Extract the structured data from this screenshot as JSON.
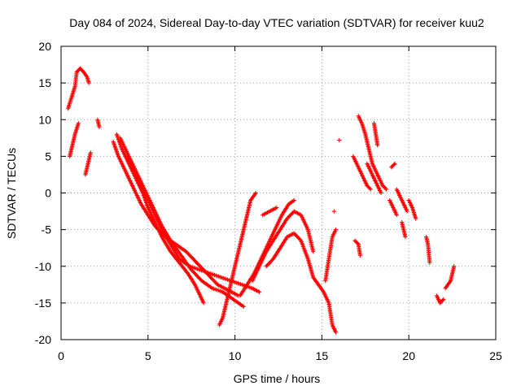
{
  "chart_data": {
    "type": "scatter",
    "title": "Day 084 of 2024, Sidereal Day-to-day VTEC variation (SDTVAR) for receiver kuu2",
    "xlabel": "GPS time / hours",
    "ylabel": "SDTVAR / TECUs",
    "xlim": [
      0,
      25
    ],
    "ylim": [
      -20,
      20
    ],
    "xticks": [
      0,
      5,
      10,
      15,
      20,
      25
    ],
    "yticks": [
      -20,
      -15,
      -10,
      -5,
      0,
      5,
      10,
      15,
      20
    ],
    "grid": true,
    "marker": "+",
    "series": [
      {
        "name": "SDTVAR",
        "color": "#ff0000",
        "tracks": [
          [
            [
              0.4,
              11.5
            ],
            [
              0.6,
              13
            ],
            [
              0.8,
              14.5
            ],
            [
              0.9,
              16.5
            ],
            [
              1.1,
              17
            ],
            [
              1.3,
              16.5
            ],
            [
              1.5,
              15.8
            ],
            [
              1.6,
              15
            ]
          ],
          [
            [
              0.5,
              5
            ],
            [
              0.6,
              6
            ],
            [
              0.8,
              8
            ],
            [
              1.0,
              9.5
            ]
          ],
          [
            [
              1.4,
              2.5
            ],
            [
              1.5,
              3.5
            ],
            [
              1.6,
              4.5
            ],
            [
              1.7,
              5.5
            ]
          ],
          [
            [
              2.1,
              10
            ],
            [
              2.2,
              9
            ]
          ],
          [
            [
              3.0,
              7
            ],
            [
              3.3,
              5
            ],
            [
              3.7,
              3
            ],
            [
              4.0,
              1.5
            ],
            [
              4.3,
              0
            ],
            [
              4.6,
              -1.5
            ],
            [
              5.0,
              -3
            ],
            [
              5.4,
              -4.5
            ],
            [
              6.0,
              -6
            ],
            [
              6.6,
              -7
            ],
            [
              7.2,
              -8
            ],
            [
              7.8,
              -9.5
            ],
            [
              8.2,
              -10.5
            ],
            [
              8.6,
              -11.5
            ],
            [
              9.0,
              -12.5
            ],
            [
              9.4,
              -13
            ],
            [
              9.8,
              -13.5
            ],
            [
              10.2,
              -14
            ]
          ],
          [
            [
              3.2,
              8
            ],
            [
              3.5,
              6
            ],
            [
              3.9,
              4
            ],
            [
              4.3,
              2
            ],
            [
              4.7,
              0
            ],
            [
              5.0,
              -2
            ],
            [
              5.4,
              -4
            ],
            [
              5.8,
              -6
            ],
            [
              6.3,
              -8
            ],
            [
              6.8,
              -9.5
            ],
            [
              7.3,
              -11
            ],
            [
              7.7,
              -12.5
            ],
            [
              8.0,
              -14
            ],
            [
              8.2,
              -15
            ]
          ],
          [
            [
              3.4,
              7.5
            ],
            [
              3.8,
              5.5
            ],
            [
              4.2,
              3.5
            ],
            [
              4.6,
              1.5
            ],
            [
              5.0,
              -0.5
            ],
            [
              5.4,
              -2.5
            ],
            [
              5.8,
              -4.5
            ],
            [
              6.3,
              -6.5
            ],
            [
              6.9,
              -8.5
            ],
            [
              7.5,
              -10.5
            ],
            [
              8.1,
              -12
            ],
            [
              8.7,
              -13
            ],
            [
              9.3,
              -13.5
            ],
            [
              9.9,
              -14.5
            ],
            [
              10.5,
              -15.5
            ]
          ],
          [
            [
              3.8,
              5
            ],
            [
              4.2,
              3
            ],
            [
              4.6,
              1
            ],
            [
              5.0,
              -1
            ],
            [
              5.4,
              -3
            ],
            [
              5.8,
              -5
            ],
            [
              6.3,
              -7
            ],
            [
              6.8,
              -9
            ],
            [
              7.4,
              -10
            ],
            [
              8.0,
              -10.5
            ],
            [
              8.6,
              -11
            ],
            [
              9.2,
              -11.5
            ],
            [
              9.8,
              -12
            ],
            [
              10.4,
              -12.5
            ],
            [
              11.0,
              -13
            ],
            [
              11.4,
              -13.5
            ]
          ],
          [
            [
              9.1,
              -18
            ],
            [
              9.3,
              -17
            ],
            [
              9.5,
              -15
            ],
            [
              9.7,
              -13
            ],
            [
              9.9,
              -11
            ],
            [
              10.1,
              -9
            ],
            [
              10.3,
              -7
            ],
            [
              10.5,
              -5
            ],
            [
              10.7,
              -3
            ],
            [
              10.9,
              -1
            ],
            [
              11.2,
              0
            ]
          ],
          [
            [
              10.3,
              -14
            ],
            [
              10.7,
              -12.5
            ],
            [
              11.1,
              -11
            ],
            [
              11.5,
              -9
            ],
            [
              11.9,
              -7
            ],
            [
              12.3,
              -5
            ],
            [
              12.7,
              -3
            ],
            [
              13.1,
              -1.5
            ],
            [
              13.4,
              -1
            ]
          ],
          [
            [
              11.0,
              -12
            ],
            [
              11.4,
              -10
            ],
            [
              11.8,
              -8
            ],
            [
              12.2,
              -6.5
            ],
            [
              12.6,
              -5
            ],
            [
              13.0,
              -3.5
            ],
            [
              13.4,
              -2.5
            ],
            [
              13.8,
              -3
            ],
            [
              14.2,
              -5
            ],
            [
              14.5,
              -8
            ]
          ],
          [
            [
              11.6,
              -3
            ],
            [
              12.0,
              -2.5
            ],
            [
              12.4,
              -2
            ]
          ],
          [
            [
              11.8,
              -10
            ],
            [
              12.2,
              -9
            ],
            [
              12.6,
              -7.5
            ],
            [
              13.0,
              -6
            ],
            [
              13.4,
              -5.5
            ],
            [
              13.8,
              -6.5
            ],
            [
              14.2,
              -9
            ],
            [
              14.5,
              -11.5
            ],
            [
              14.8,
              -12.5
            ],
            [
              15.1,
              -13.5
            ],
            [
              15.4,
              -15
            ],
            [
              15.6,
              -18
            ],
            [
              15.8,
              -19
            ]
          ],
          [
            [
              15.2,
              -12
            ],
            [
              15.4,
              -9
            ],
            [
              15.6,
              -6
            ],
            [
              15.8,
              -5
            ]
          ],
          [
            [
              15.7,
              -2.5
            ]
          ],
          [
            [
              16.0,
              7.2
            ]
          ],
          [
            [
              16.9,
              -6.5
            ],
            [
              17.1,
              -7
            ],
            [
              17.2,
              -8.5
            ]
          ],
          [
            [
              16.8,
              5
            ],
            [
              17.0,
              4
            ],
            [
              17.2,
              3
            ],
            [
              17.4,
              2
            ],
            [
              17.6,
              1
            ],
            [
              17.8,
              0.5
            ]
          ],
          [
            [
              17.1,
              10.5
            ],
            [
              17.3,
              9.5
            ],
            [
              17.5,
              8
            ],
            [
              17.7,
              6
            ],
            [
              17.9,
              4
            ],
            [
              18.1,
              3
            ],
            [
              18.3,
              2
            ],
            [
              18.5,
              1
            ],
            [
              18.7,
              0.5
            ]
          ],
          [
            [
              17.6,
              4
            ],
            [
              17.8,
              3
            ],
            [
              18.0,
              2
            ],
            [
              18.2,
              1
            ],
            [
              18.4,
              0
            ]
          ],
          [
            [
              18.0,
              9.5
            ],
            [
              18.1,
              8
            ],
            [
              18.2,
              6.5
            ]
          ],
          [
            [
              18.9,
              -1
            ],
            [
              19.1,
              -2
            ],
            [
              19.3,
              -3
            ]
          ],
          [
            [
              19.3,
              0.5
            ],
            [
              19.5,
              -0.5
            ],
            [
              19.7,
              -1.5
            ],
            [
              19.9,
              -2.5
            ]
          ],
          [
            [
              19.6,
              -4
            ],
            [
              19.7,
              -5
            ],
            [
              19.8,
              -6
            ]
          ],
          [
            [
              20.0,
              -1
            ],
            [
              20.2,
              -2
            ],
            [
              20.4,
              -3.5
            ]
          ],
          [
            [
              19.2,
              4
            ],
            [
              19.0,
              3.5
            ]
          ],
          [
            [
              21.0,
              -6
            ],
            [
              21.1,
              -7
            ],
            [
              21.2,
              -9.5
            ]
          ],
          [
            [
              21.6,
              -14
            ],
            [
              21.8,
              -15
            ],
            [
              22.0,
              -14.5
            ]
          ],
          [
            [
              22.1,
              -13
            ],
            [
              22.4,
              -12
            ],
            [
              22.5,
              -11
            ],
            [
              22.6,
              -10
            ]
          ]
        ]
      }
    ]
  }
}
